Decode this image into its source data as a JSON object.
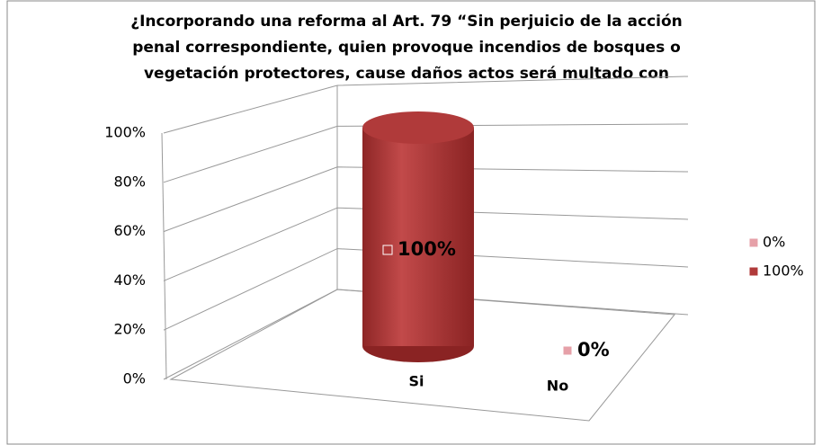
{
  "chart_data": {
    "type": "bar3d",
    "title": [
      "¿Incorporando una reforma al Art. 79 “Sin perjuicio de la acción",
      "penal correspondiente, quien provoque incendios de bosques o",
      "vegetación protectores, cause daños actos será multado con"
    ],
    "categories": [
      "Si",
      "No"
    ],
    "values": [
      100,
      0
    ],
    "value_labels": [
      "100%",
      "0%"
    ],
    "colors": [
      "#b03a3a",
      "#e6a0a8"
    ],
    "legend": [
      {
        "name": "0%",
        "color": "#e6a0a8"
      },
      {
        "name": "100%",
        "color": "#b03a3a"
      }
    ],
    "ylim": [
      0,
      100
    ],
    "yticks": [
      {
        "value": 0,
        "label": "0%"
      },
      {
        "value": 20,
        "label": "20%"
      },
      {
        "value": 40,
        "label": "40%"
      },
      {
        "value": 60,
        "label": "60%"
      },
      {
        "value": 80,
        "label": "80%"
      },
      {
        "value": 100,
        "label": "100%"
      }
    ],
    "grid": true
  }
}
